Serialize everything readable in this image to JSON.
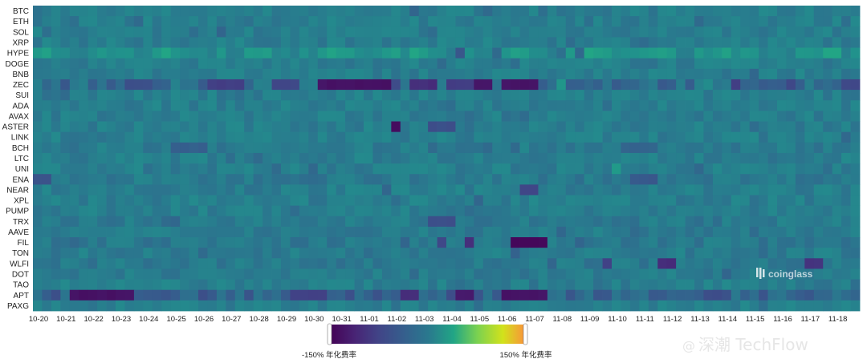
{
  "chart_data": {
    "type": "heatmap",
    "title": "",
    "xlabel": "",
    "ylabel": "",
    "rows": [
      "BTC",
      "ETH",
      "SOL",
      "XRP",
      "HYPE",
      "DOGE",
      "BNB",
      "ZEC",
      "SUI",
      "ADA",
      "AVAX",
      "ASTER",
      "LINK",
      "BCH",
      "LTC",
      "UNI",
      "ENA",
      "NEAR",
      "XPL",
      "PUMP",
      "TRX",
      "AAVE",
      "FIL",
      "TON",
      "WLFI",
      "DOT",
      "TAO",
      "APT",
      "PAXG"
    ],
    "x_tick_labels": [
      "10-20",
      "10-21",
      "10-22",
      "10-23",
      "10-24",
      "10-25",
      "10-26",
      "10-27",
      "10-28",
      "10-29",
      "10-30",
      "10-31",
      "11-01",
      "11-02",
      "11-03",
      "11-04",
      "11-05",
      "11-06",
      "11-07",
      "11-08",
      "11-09",
      "11-10",
      "11-11",
      "11-12",
      "11-13",
      "11-14",
      "11-15",
      "11-16",
      "11-17",
      "11-18"
    ],
    "columns": 90,
    "columns_per_tick": 3,
    "value_range": [
      -150,
      150
    ],
    "baseline_value": 10,
    "colorscale": "viridis",
    "colorbar": {
      "min_label": "-150% 年化费率",
      "max_label": "150% 年化费率"
    },
    "row_default": {
      "ZEC": -25,
      "APT": -40,
      "FIL": -8,
      "WLFI": -8,
      "ENA": -6,
      "TRX": -6,
      "BCH": -4,
      "DOT": -4,
      "AAVE": -3,
      "TON": -3,
      "HYPE": 30
    },
    "highlights": [
      {
        "row": "ZEC",
        "from": 31,
        "to": 38,
        "value": -130
      },
      {
        "row": "ZEC",
        "from": 41,
        "to": 43,
        "value": -100
      },
      {
        "row": "ZEC",
        "from": 45,
        "to": 47,
        "value": -80
      },
      {
        "row": "ZEC",
        "from": 48,
        "to": 49,
        "value": -125
      },
      {
        "row": "ZEC",
        "from": 51,
        "to": 54,
        "value": -130
      },
      {
        "row": "ZEC",
        "from": 19,
        "to": 22,
        "value": -80
      },
      {
        "row": "ZEC",
        "from": 26,
        "to": 28,
        "value": -70
      },
      {
        "row": "ZEC",
        "from": 10,
        "to": 12,
        "value": -60
      },
      {
        "row": "ZEC",
        "from": 76,
        "to": 76,
        "value": -80
      },
      {
        "row": "ZEC",
        "from": 82,
        "to": 82,
        "value": -70
      },
      {
        "row": "ZEC",
        "from": 88,
        "to": 89,
        "value": -70
      },
      {
        "row": "ZEC",
        "from": 57,
        "to": 57,
        "value": 45
      },
      {
        "row": "ZEC",
        "from": 73,
        "to": 73,
        "value": 35
      },
      {
        "row": "APT",
        "from": 4,
        "to": 10,
        "value": -130
      },
      {
        "row": "APT",
        "from": 46,
        "to": 47,
        "value": -120
      },
      {
        "row": "APT",
        "from": 51,
        "to": 55,
        "value": -130
      },
      {
        "row": "APT",
        "from": 28,
        "to": 31,
        "value": -80
      },
      {
        "row": "APT",
        "from": 40,
        "to": 41,
        "value": -100
      },
      {
        "row": "FIL",
        "from": 52,
        "to": 55,
        "value": -140
      },
      {
        "row": "FIL",
        "from": 47,
        "to": 47,
        "value": -100
      },
      {
        "row": "FIL",
        "from": 44,
        "to": 44,
        "value": -70
      },
      {
        "row": "ASTER",
        "from": 39,
        "to": 39,
        "value": -140
      },
      {
        "row": "ASTER",
        "from": 43,
        "to": 45,
        "value": -60
      },
      {
        "row": "WLFI",
        "from": 68,
        "to": 69,
        "value": -100
      },
      {
        "row": "WLFI",
        "from": 62,
        "to": 62,
        "value": -80
      },
      {
        "row": "WLFI",
        "from": 84,
        "to": 85,
        "value": -90
      },
      {
        "row": "NEAR",
        "from": 53,
        "to": 54,
        "value": -70
      },
      {
        "row": "TRX",
        "from": 43,
        "to": 45,
        "value": -60
      },
      {
        "row": "HYPE",
        "from": 7,
        "to": 7,
        "value": 50
      },
      {
        "row": "HYPE",
        "from": 10,
        "to": 10,
        "value": 45
      },
      {
        "row": "HYPE",
        "from": 74,
        "to": 74,
        "value": 45
      },
      {
        "row": "HYPE",
        "from": 78,
        "to": 78,
        "value": 40
      },
      {
        "row": "UNI",
        "from": 63,
        "to": 63,
        "value": 50
      },
      {
        "row": "HYPE",
        "from": 46,
        "to": 46,
        "value": -50
      },
      {
        "row": "BCH",
        "from": 15,
        "to": 18,
        "value": -35
      },
      {
        "row": "BCH",
        "from": 64,
        "to": 67,
        "value": -30
      },
      {
        "row": "ENA",
        "from": 0,
        "to": 1,
        "value": -50
      },
      {
        "row": "ENA",
        "from": 65,
        "to": 67,
        "value": -45
      }
    ],
    "noise_amplitude": 18,
    "noise_seed": 7
  },
  "watermark": {
    "logo_text": "coinglass",
    "channel_text": "深潮 TechFlow"
  },
  "colors": {
    "background": "#ffffff",
    "text": "#222222"
  }
}
